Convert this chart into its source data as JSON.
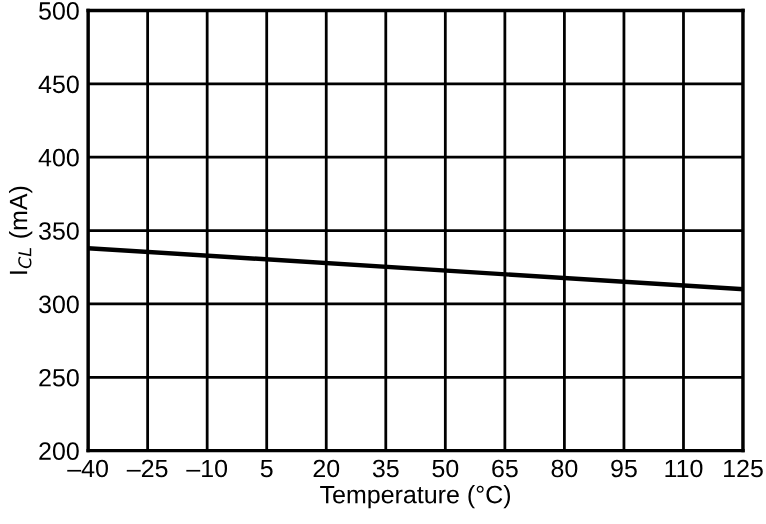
{
  "chart_data": {
    "type": "line",
    "xlabel": "Temperature (°C)",
    "ylabel": "I$_{CL}$ (mA)",
    "x": [
      -40,
      125
    ],
    "series": [
      {
        "color": "#000000",
        "values": [
          338,
          310
        ]
      }
    ],
    "xlim": [
      -40,
      125
    ],
    "ylim": [
      200,
      500
    ],
    "xticks": [
      {
        "value": -40,
        "label": "–40"
      },
      {
        "value": -25,
        "label": "–25"
      },
      {
        "value": -10,
        "label": "–10"
      },
      5,
      20,
      35,
      50,
      65,
      80,
      95,
      110,
      125
    ],
    "yticks": [
      200,
      250,
      300,
      350,
      400,
      450,
      500
    ],
    "grid": true
  }
}
